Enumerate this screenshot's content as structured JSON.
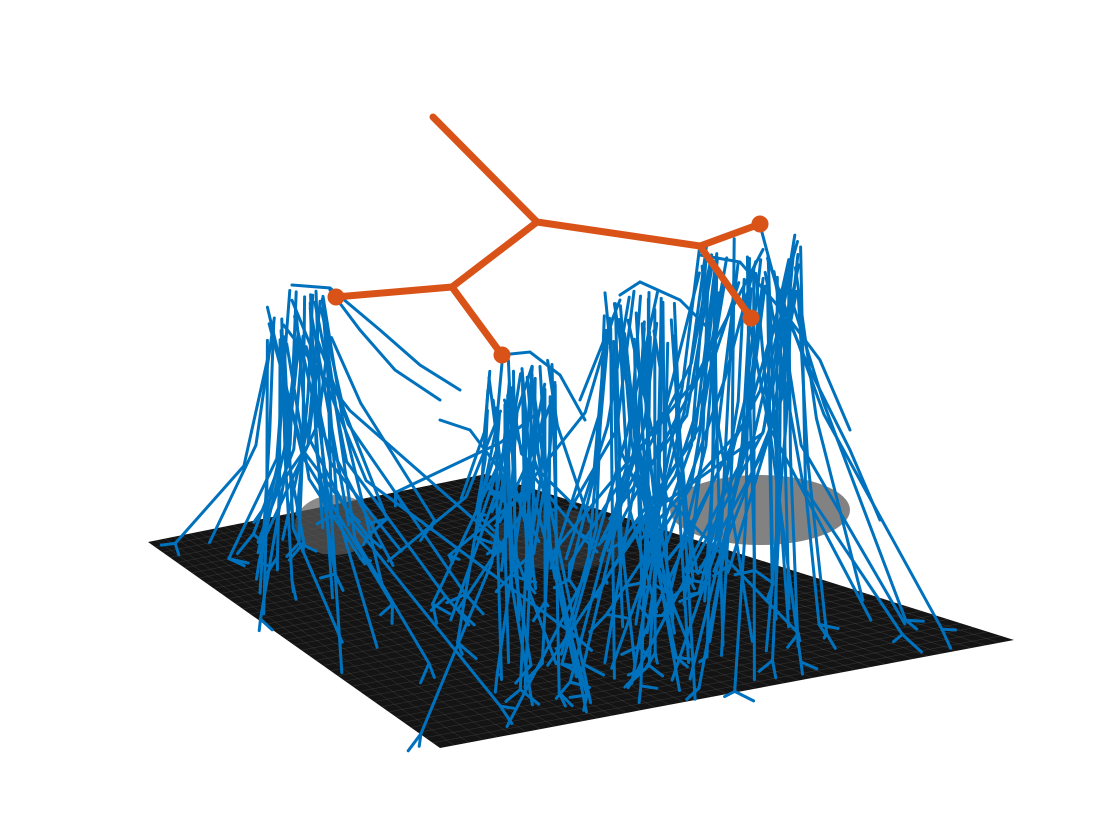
{
  "figure": {
    "description_text": "",
    "colors": {
      "background": "#ffffff",
      "surface_fill": "#141414",
      "surface_mesh": "#8a8a8a",
      "blue_tree": "#0072BD",
      "orange_tree": "#D95319"
    },
    "elements": {
      "surface": "3d-mesh-surface",
      "blue_lines": "blue-vertical-tree-lines",
      "orange_tree": "orange-hierarchical-tree"
    }
  }
}
